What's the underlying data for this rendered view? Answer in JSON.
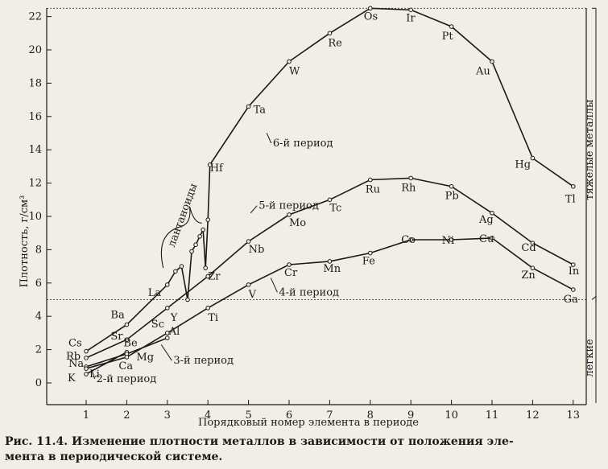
{
  "chart_data": {
    "type": "line",
    "xlabel": "Порядковый номер элемента в периоде",
    "ylabel": "Плотность, г/см³",
    "xlim": [
      0.5,
      13.5
    ],
    "ylim": [
      -0.5,
      22.5
    ],
    "xticks": [
      1,
      2,
      3,
      4,
      5,
      6,
      7,
      8,
      9,
      10,
      11,
      12,
      13
    ],
    "yticks": [
      0,
      2,
      4,
      6,
      8,
      10,
      12,
      14,
      16,
      18,
      20,
      22
    ],
    "grid": false,
    "series": [
      {
        "name": "2-й период",
        "points": [
          {
            "x": 1,
            "y": 0.53,
            "label": "Li"
          },
          {
            "x": 2,
            "y": 1.85,
            "label": "Be"
          }
        ]
      },
      {
        "name": "3-й период",
        "points": [
          {
            "x": 1,
            "y": 0.97,
            "label": "Na"
          },
          {
            "x": 2,
            "y": 1.74,
            "label": "Mg"
          },
          {
            "x": 3,
            "y": 2.7,
            "label": "Al"
          }
        ]
      },
      {
        "name": "4-й период",
        "points": [
          {
            "x": 1,
            "y": 0.86,
            "label": "K"
          },
          {
            "x": 2,
            "y": 1.55,
            "label": "Ca"
          },
          {
            "x": 3,
            "y": 3.0,
            "label": "Sc"
          },
          {
            "x": 4,
            "y": 4.5,
            "label": "Ti"
          },
          {
            "x": 5,
            "y": 5.9,
            "label": "V"
          },
          {
            "x": 6,
            "y": 7.1,
            "label": "Cr"
          },
          {
            "x": 7,
            "y": 7.3,
            "label": "Mn"
          },
          {
            "x": 8,
            "y": 7.8,
            "label": "Fe"
          },
          {
            "x": 9,
            "y": 8.6,
            "label": "Co"
          },
          {
            "x": 10,
            "y": 8.6,
            "label": "Ni"
          },
          {
            "x": 11,
            "y": 8.7,
            "label": "Cu"
          },
          {
            "x": 12,
            "y": 6.9,
            "label": "Zn"
          },
          {
            "x": 13,
            "y": 5.6,
            "label": "Ga"
          }
        ]
      },
      {
        "name": "5-й период",
        "points": [
          {
            "x": 1,
            "y": 1.5,
            "label": "Rb"
          },
          {
            "x": 2,
            "y": 2.6,
            "label": "Sr"
          },
          {
            "x": 3,
            "y": 4.5,
            "label": "Y"
          },
          {
            "x": 4,
            "y": 6.4,
            "label": "Zr"
          },
          {
            "x": 5,
            "y": 8.5,
            "label": "Nb"
          },
          {
            "x": 6,
            "y": 10.1,
            "label": "Mo"
          },
          {
            "x": 7,
            "y": 11.0,
            "label": "Tc"
          },
          {
            "x": 8,
            "y": 12.2,
            "label": "Ru"
          },
          {
            "x": 9,
            "y": 12.3,
            "label": "Rh"
          },
          {
            "x": 10,
            "y": 11.8,
            "label": "Pb"
          },
          {
            "x": 11,
            "y": 10.2,
            "label": "Ag"
          },
          {
            "x": 12,
            "y": 8.4,
            "label": "Cd"
          },
          {
            "x": 13,
            "y": 7.1,
            "label": "In"
          }
        ]
      },
      {
        "name": "6-й период",
        "points": [
          {
            "x": 1,
            "y": 1.9,
            "label": "Cs"
          },
          {
            "x": 2,
            "y": 3.5,
            "label": "Ba"
          },
          {
            "x": 3,
            "y": 5.9,
            "label": "La"
          },
          {
            "x": 3.2,
            "y": 6.7,
            "label": ""
          },
          {
            "x": 3.35,
            "y": 7.0,
            "label": ""
          },
          {
            "x": 3.5,
            "y": 5.0,
            "label": ""
          },
          {
            "x": 3.6,
            "y": 7.9,
            "label": ""
          },
          {
            "x": 3.7,
            "y": 8.3,
            "label": ""
          },
          {
            "x": 3.8,
            "y": 8.8,
            "label": ""
          },
          {
            "x": 3.88,
            "y": 9.2,
            "label": ""
          },
          {
            "x": 3.94,
            "y": 6.9,
            "label": ""
          },
          {
            "x": 4.0,
            "y": 9.8,
            "label": ""
          },
          {
            "x": 4.05,
            "y": 13.1,
            "label": "Hf"
          },
          {
            "x": 5,
            "y": 16.6,
            "label": "Ta"
          },
          {
            "x": 6,
            "y": 19.3,
            "label": "W"
          },
          {
            "x": 7,
            "y": 21.0,
            "label": "Re"
          },
          {
            "x": 8,
            "y": 22.5,
            "label": "Os"
          },
          {
            "x": 9,
            "y": 22.4,
            "label": "Ir"
          },
          {
            "x": 10,
            "y": 21.4,
            "label": "Pt"
          },
          {
            "x": 11,
            "y": 19.3,
            "label": "Au"
          },
          {
            "x": 12,
            "y": 13.5,
            "label": "Hg"
          },
          {
            "x": 13,
            "y": 11.8,
            "label": "Tl"
          }
        ]
      }
    ],
    "annotations": {
      "lanthanides": "лантаноиды",
      "heavy_metals": "тяжелые металлы",
      "light_metals": "легкие",
      "boundary_y": 5,
      "top_y": 22.5
    }
  },
  "caption": {
    "line1": "Рис. 11.4. Изменение плотности металлов в зависимости от положения эле-",
    "line2": "мента в периодической системе."
  }
}
